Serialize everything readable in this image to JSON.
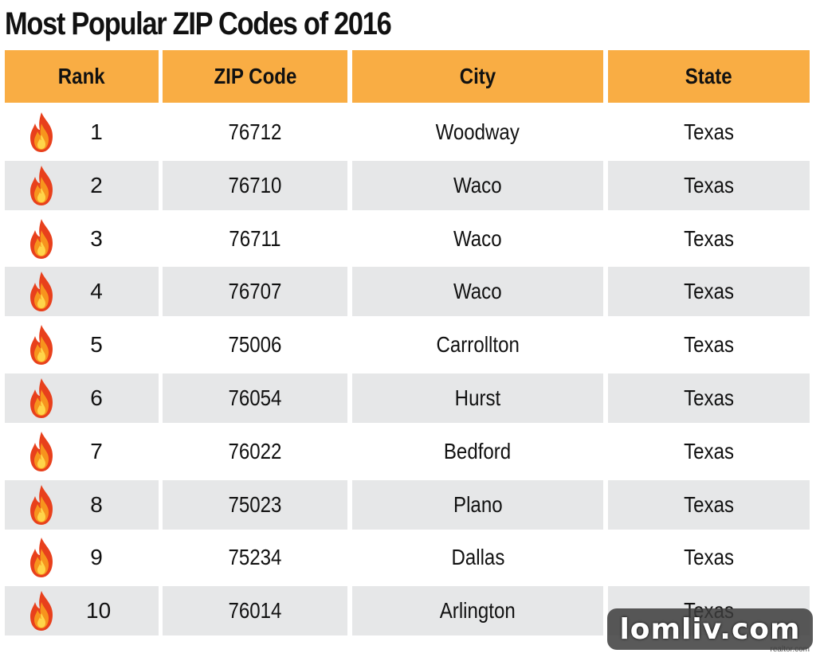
{
  "chart_data": {
    "type": "table",
    "title": "Most Popular ZIP Codes of 2016",
    "columns": [
      "Rank",
      "ZIP Code",
      "City",
      "State"
    ],
    "rows": [
      {
        "rank": "1",
        "zip": "76712",
        "city": "Woodway",
        "state": "Texas"
      },
      {
        "rank": "2",
        "zip": "76710",
        "city": "Waco",
        "state": "Texas"
      },
      {
        "rank": "3",
        "zip": "76711",
        "city": "Waco",
        "state": "Texas"
      },
      {
        "rank": "4",
        "zip": "76707",
        "city": "Waco",
        "state": "Texas"
      },
      {
        "rank": "5",
        "zip": "75006",
        "city": "Carrollton",
        "state": "Texas"
      },
      {
        "rank": "6",
        "zip": "76054",
        "city": "Hurst",
        "state": "Texas"
      },
      {
        "rank": "7",
        "zip": "76022",
        "city": "Bedford",
        "state": "Texas"
      },
      {
        "rank": "8",
        "zip": "75023",
        "city": "Plano",
        "state": "Texas"
      },
      {
        "rank": "9",
        "zip": "75234",
        "city": "Dallas",
        "state": "Texas"
      },
      {
        "rank": "10",
        "zip": "76014",
        "city": "Arlington",
        "state": "Texas"
      }
    ]
  },
  "watermark": "lomliv.com",
  "source": "realtor.com",
  "colors": {
    "header": "#f9ad44",
    "stripe": "#e6e7e8",
    "flame_outer": "#e8401c",
    "flame_mid": "#f7941d",
    "flame_inner": "#ffd54a"
  },
  "icons": {
    "rank_icon": "flame-icon"
  }
}
